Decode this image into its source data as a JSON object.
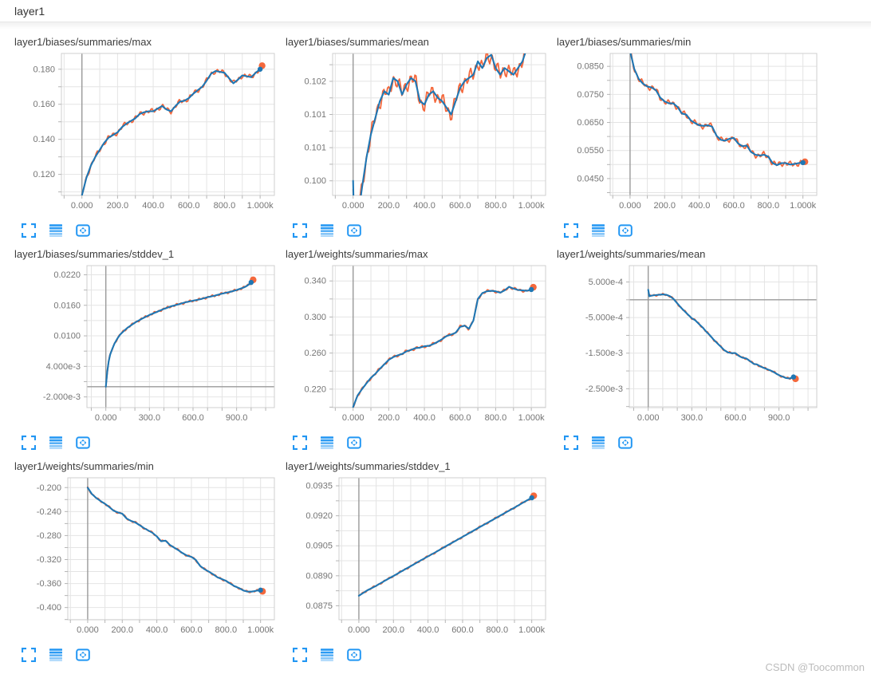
{
  "header": {
    "title": "layer1"
  },
  "watermark": "CSDN @Toocommon",
  "colors": {
    "raw_line": "#f4683c",
    "smoothed_line": "#1f77b4",
    "icon_accent": "#2196f3",
    "grid": "#e4e4e4",
    "plot_border": "#cfcfcf",
    "zero_line": "#9a9a9a",
    "tick_label": "#757575"
  },
  "toolbar_icons": [
    "fullscreen",
    "stacked-lines",
    "fit-domain"
  ],
  "chart_data": [
    {
      "type": "line",
      "title": "layer1/biases/summaries/max",
      "series_names": [
        "raw",
        "smoothed"
      ],
      "x_tick_vals": [
        0,
        200,
        400,
        600,
        800,
        1000
      ],
      "x_tick_labels": [
        "0.000",
        "200.0",
        "400.0",
        "600.0",
        "800.0",
        "1.000k"
      ],
      "y_tick_vals": [
        0.12,
        0.14,
        0.16,
        0.18
      ],
      "y_tick_labels": [
        "0.120",
        "0.140",
        "0.160",
        "0.180"
      ],
      "x_domain": [
        -115,
        1080
      ],
      "y_domain": [
        0.108,
        0.189
      ],
      "x_minor": 100,
      "y_minor": 0.01,
      "zero_y": false,
      "x_step": 25,
      "smoothed_y": [
        0.108,
        0.118,
        0.125,
        0.13,
        0.134,
        0.138,
        0.141,
        0.1425,
        0.144,
        0.147,
        0.149,
        0.1505,
        0.152,
        0.1545,
        0.1555,
        0.156,
        0.156,
        0.1575,
        0.159,
        0.157,
        0.156,
        0.159,
        0.1615,
        0.162,
        0.1635,
        0.166,
        0.168,
        0.17,
        0.1735,
        0.1775,
        0.179,
        0.1785,
        0.178,
        0.175,
        0.172,
        0.174,
        0.1765,
        0.176,
        0.1755,
        0.178,
        0.18
      ],
      "raw_jitter_amp": 0.0016,
      "raw_end": 0.182
    },
    {
      "type": "line",
      "title": "layer1/biases/summaries/mean",
      "series_names": [
        "raw",
        "smoothed"
      ],
      "x_tick_vals": [
        0,
        200,
        400,
        600,
        800,
        1000
      ],
      "x_tick_labels": [
        "0.000",
        "200.0",
        "400.0",
        "600.0",
        "800.0",
        "1.000k"
      ],
      "y_tick_vals": [
        0.1,
        0.1005,
        0.101,
        0.1015
      ],
      "y_tick_labels": [
        "0.100",
        "0.101",
        "0.101",
        "0.102"
      ],
      "x_domain": [
        -115,
        1080
      ],
      "y_domain": [
        0.09978,
        0.10192
      ],
      "x_minor": 100,
      "y_minor": 0.00025,
      "zero_y": false,
      "x": [
        0,
        6,
        30,
        50,
        75,
        100,
        125,
        150,
        175,
        200,
        225,
        250,
        275,
        300,
        325,
        350,
        375,
        400,
        425,
        450,
        475,
        500,
        525,
        550,
        575,
        600,
        625,
        650,
        675,
        700,
        725,
        750,
        775,
        800,
        825,
        850,
        875,
        900,
        925,
        950,
        975,
        1000
      ],
      "smoothed_y": [
        0.1,
        0.0993,
        0.0995,
        0.0999,
        0.10035,
        0.1007,
        0.10095,
        0.1012,
        0.10135,
        0.1013,
        0.10155,
        0.1015,
        0.1013,
        0.10145,
        0.10155,
        0.1015,
        0.1012,
        0.10115,
        0.1013,
        0.10135,
        0.10125,
        0.1012,
        0.1011,
        0.101,
        0.1012,
        0.1014,
        0.1015,
        0.10155,
        0.1016,
        0.1018,
        0.1017,
        0.10185,
        0.1019,
        0.1017,
        0.1016,
        0.1017,
        0.10165,
        0.1016,
        0.1017,
        0.1018,
        0.102,
        0.1021
      ],
      "raw_jitter_amp": 0.00013,
      "raw_end": 0.1021
    },
    {
      "type": "line",
      "title": "layer1/biases/summaries/min",
      "series_names": [
        "raw",
        "smoothed"
      ],
      "x_tick_vals": [
        0,
        200,
        400,
        600,
        800,
        1000
      ],
      "x_tick_labels": [
        "0.000",
        "200.0",
        "400.0",
        "600.0",
        "800.0",
        "1.000k"
      ],
      "y_tick_vals": [
        0.045,
        0.055,
        0.065,
        0.075,
        0.085
      ],
      "y_tick_labels": [
        "0.0450",
        "0.0550",
        "0.0650",
        "0.0750",
        "0.0850"
      ],
      "x_domain": [
        -115,
        1080
      ],
      "y_domain": [
        0.039,
        0.0896
      ],
      "x_minor": 100,
      "y_minor": 0.005,
      "zero_y": false,
      "x_step": 25,
      "smoothed_y": [
        0.0905,
        0.084,
        0.0805,
        0.0788,
        0.0778,
        0.0775,
        0.0765,
        0.0738,
        0.0725,
        0.0718,
        0.0718,
        0.0705,
        0.0682,
        0.0678,
        0.0658,
        0.0648,
        0.064,
        0.0638,
        0.064,
        0.0635,
        0.0603,
        0.0588,
        0.0585,
        0.0592,
        0.0595,
        0.0575,
        0.0565,
        0.0568,
        0.0545,
        0.0535,
        0.0532,
        0.0535,
        0.0528,
        0.0505,
        0.0498,
        0.0505,
        0.0505,
        0.05,
        0.0502,
        0.0505,
        0.0507
      ],
      "raw_jitter_amp": 0.0012,
      "raw_end": 0.051
    },
    {
      "type": "line",
      "title": "layer1/biases/summaries/stddev_1",
      "series_names": [
        "raw",
        "smoothed"
      ],
      "x_tick_vals": [
        0,
        300,
        600,
        900
      ],
      "x_tick_labels": [
        "0.000",
        "300.0",
        "600.0",
        "900.0"
      ],
      "y_tick_vals": [
        -0.002,
        0.004,
        0.01,
        0.016,
        0.022
      ],
      "y_tick_labels": [
        "-2.000e-3",
        "4.000e-3",
        "0.0100",
        "0.0160",
        "0.0220"
      ],
      "x_domain": [
        -130,
        1160
      ],
      "y_domain": [
        -0.0041,
        0.0238
      ],
      "x_minor": 100,
      "y_minor": 0.003,
      "zero_y": true,
      "x": [
        0,
        10,
        20,
        30,
        45,
        60,
        80,
        100,
        125,
        150,
        175,
        200,
        250,
        300,
        350,
        400,
        450,
        500,
        550,
        600,
        650,
        700,
        750,
        800,
        850,
        900,
        950,
        975,
        1000
      ],
      "smoothed_y": [
        0,
        0.003,
        0.005,
        0.0063,
        0.0075,
        0.0085,
        0.0095,
        0.0103,
        0.011,
        0.0116,
        0.0121,
        0.0126,
        0.0134,
        0.0141,
        0.0147,
        0.0153,
        0.0158,
        0.0162,
        0.0166,
        0.0169,
        0.0172,
        0.0176,
        0.0179,
        0.0183,
        0.0186,
        0.019,
        0.0195,
        0.0199,
        0.0205
      ],
      "raw_jitter_amp": 0.00025,
      "raw_end": 0.021
    },
    {
      "type": "line",
      "title": "layer1/weights/summaries/max",
      "series_names": [
        "raw",
        "smoothed"
      ],
      "x_tick_vals": [
        0,
        200,
        400,
        600,
        800,
        1000
      ],
      "x_tick_labels": [
        "0.000",
        "200.0",
        "400.0",
        "600.0",
        "800.0",
        "1.000k"
      ],
      "y_tick_vals": [
        0.22,
        0.26,
        0.3,
        0.34
      ],
      "y_tick_labels": [
        "0.220",
        "0.260",
        "0.300",
        "0.340"
      ],
      "x_domain": [
        -115,
        1080
      ],
      "y_domain": [
        0.1995,
        0.357
      ],
      "x_minor": 100,
      "y_minor": 0.02,
      "zero_y": false,
      "x_step": 25,
      "smoothed_y": [
        0.2,
        0.213,
        0.22,
        0.2265,
        0.2325,
        0.237,
        0.2425,
        0.2475,
        0.2525,
        0.2555,
        0.2575,
        0.259,
        0.262,
        0.2635,
        0.2655,
        0.266,
        0.2675,
        0.268,
        0.27,
        0.2725,
        0.2755,
        0.279,
        0.2805,
        0.2825,
        0.289,
        0.2905,
        0.287,
        0.296,
        0.32,
        0.3265,
        0.3285,
        0.329,
        0.3285,
        0.327,
        0.3295,
        0.3335,
        0.3315,
        0.33,
        0.3295,
        0.329,
        0.3305
      ],
      "raw_jitter_amp": 0.0018,
      "raw_end": 0.333
    },
    {
      "type": "line",
      "title": "layer1/weights/summaries/mean",
      "series_names": [
        "raw",
        "smoothed"
      ],
      "x_tick_vals": [
        0,
        300,
        600,
        900
      ],
      "x_tick_labels": [
        "0.000",
        "300.0",
        "600.0",
        "900.0"
      ],
      "y_tick_vals": [
        0.0005,
        -0.0005,
        -0.0015,
        -0.0025
      ],
      "y_tick_labels": [
        "5.000e-4",
        "-5.000e-4",
        "-1.500e-3",
        "-2.500e-3"
      ],
      "x_domain": [
        -130,
        1160
      ],
      "y_domain": [
        -0.00303,
        0.00096
      ],
      "x_minor": 100,
      "y_minor": 0.0005,
      "zero_y": true,
      "x": [
        0,
        8,
        25,
        50,
        75,
        100,
        125,
        150,
        175,
        200,
        225,
        250,
        275,
        300,
        325,
        350,
        375,
        400,
        425,
        450,
        475,
        500,
        525,
        550,
        575,
        600,
        625,
        650,
        675,
        700,
        725,
        750,
        775,
        800,
        825,
        850,
        875,
        900,
        925,
        950,
        975,
        1000
      ],
      "smoothed_y": [
        0.00028,
        0.0001,
        0.00012,
        0.00013,
        0.00014,
        0.00015,
        0.00014,
        0.0001,
        2e-05,
        -0.0001,
        -0.00022,
        -0.00032,
        -0.00042,
        -0.00052,
        -0.00058,
        -0.00068,
        -0.00078,
        -0.0009,
        -0.001,
        -0.00112,
        -0.00122,
        -0.00132,
        -0.00142,
        -0.00148,
        -0.0015,
        -0.0015,
        -0.00158,
        -0.00163,
        -0.00165,
        -0.00172,
        -0.0018,
        -0.00182,
        -0.00188,
        -0.00192,
        -0.00196,
        -0.002,
        -0.00206,
        -0.00212,
        -0.00216,
        -0.0022,
        -0.00221,
        -0.00217
      ],
      "raw_jitter_amp": 3e-05,
      "raw_end": -0.00222
    },
    {
      "type": "line",
      "title": "layer1/weights/summaries/min",
      "series_names": [
        "raw",
        "smoothed"
      ],
      "x_tick_vals": [
        0,
        200,
        400,
        600,
        800,
        1000
      ],
      "x_tick_labels": [
        "0.000",
        "200.0",
        "400.0",
        "600.0",
        "800.0",
        "1.000k"
      ],
      "y_tick_vals": [
        -0.2,
        -0.24,
        -0.28,
        -0.32,
        -0.36,
        -0.4
      ],
      "y_tick_labels": [
        "-0.200",
        "-0.240",
        "-0.280",
        "-0.320",
        "-0.360",
        "-0.400"
      ],
      "x_domain": [
        -115,
        1080
      ],
      "y_domain": [
        -0.4204,
        -0.1837
      ],
      "x_minor": 100,
      "y_minor": 0.02,
      "zero_y": false,
      "x_step": 25,
      "smoothed_y": [
        -0.2,
        -0.211,
        -0.2175,
        -0.2225,
        -0.227,
        -0.2325,
        -0.2385,
        -0.2415,
        -0.2435,
        -0.2515,
        -0.2555,
        -0.258,
        -0.2625,
        -0.2675,
        -0.2715,
        -0.2755,
        -0.2815,
        -0.2895,
        -0.2885,
        -0.2955,
        -0.3,
        -0.3045,
        -0.3095,
        -0.3135,
        -0.3155,
        -0.3205,
        -0.3305,
        -0.336,
        -0.34,
        -0.3445,
        -0.3495,
        -0.3525,
        -0.3555,
        -0.36,
        -0.3645,
        -0.3675,
        -0.3715,
        -0.3735,
        -0.3735,
        -0.372,
        -0.371
      ],
      "raw_jitter_amp": 0.0018,
      "raw_end": -0.373
    },
    {
      "type": "line",
      "title": "layer1/weights/summaries/stddev_1",
      "series_names": [
        "raw",
        "smoothed"
      ],
      "x_tick_vals": [
        0,
        200,
        400,
        600,
        800,
        1000
      ],
      "x_tick_labels": [
        "0.000",
        "200.0",
        "400.0",
        "600.0",
        "800.0",
        "1.000k"
      ],
      "y_tick_vals": [
        0.0875,
        0.089,
        0.0905,
        0.092,
        0.0935
      ],
      "y_tick_labels": [
        "0.0875",
        "0.0890",
        "0.0905",
        "0.0920",
        "0.0935"
      ],
      "x_domain": [
        -115,
        1080
      ],
      "y_domain": [
        0.0868,
        0.0939
      ],
      "x_minor": 100,
      "y_minor": 0.00075,
      "zero_y": false,
      "x_step": 50,
      "smoothed_y": [
        0.088,
        0.08828,
        0.0885,
        0.08875,
        0.08899,
        0.08924,
        0.08948,
        0.08973,
        0.08997,
        0.09021,
        0.09046,
        0.0907,
        0.09095,
        0.09119,
        0.09144,
        0.09168,
        0.09192,
        0.09217,
        0.09241,
        0.09266,
        0.0929
      ],
      "raw_jitter_amp": 5e-05,
      "raw_end": 0.093
    }
  ]
}
